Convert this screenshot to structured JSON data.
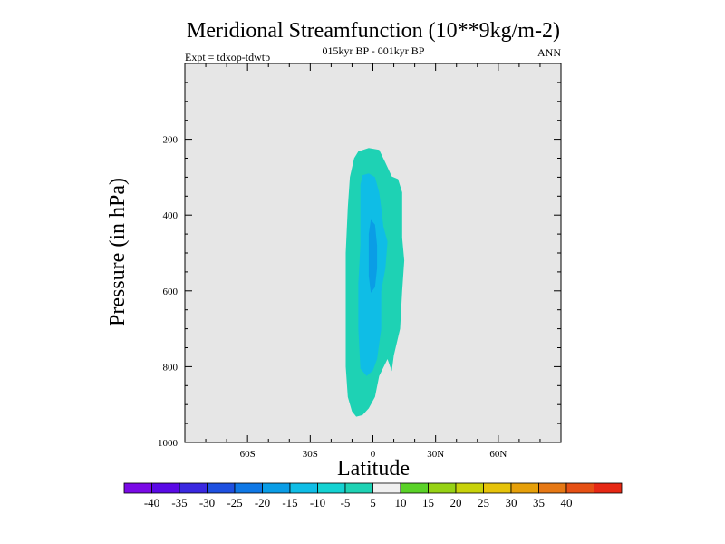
{
  "chart_data": {
    "type": "contour",
    "title": "Meridional Streamfunction (10**9kg/m-2)",
    "left_subtitle": "Expt = tdxop-tdwtp",
    "center_subtitle": "015kyr BP - 001kyr BP",
    "right_subtitle": "ANN",
    "xlabel": "Latitude",
    "ylabel": "Pressure (in hPa)",
    "xlim": [
      -90,
      90
    ],
    "ylim": [
      1000,
      0
    ],
    "x_ticks": [
      -60,
      -30,
      0,
      30,
      60
    ],
    "x_tick_labels": [
      "60S",
      "30S",
      "0",
      "30N",
      "60N"
    ],
    "y_ticks": [
      200,
      400,
      600,
      800,
      1000
    ],
    "y_tick_labels": [
      "200",
      "400",
      "600",
      "800",
      "1000"
    ],
    "background_color": "#e6e6e6",
    "contours": [
      {
        "level": -10,
        "color": "#1ed2b4",
        "outline": [
          [
            -7,
            232
          ],
          [
            -2,
            223
          ],
          [
            3,
            228
          ],
          [
            6,
            262
          ],
          [
            9,
            298
          ],
          [
            12,
            305
          ],
          [
            14,
            340
          ],
          [
            14,
            460
          ],
          [
            15,
            520
          ],
          [
            14,
            600
          ],
          [
            13,
            700
          ],
          [
            10,
            770
          ],
          [
            9,
            812
          ],
          [
            7,
            780
          ],
          [
            3,
            825
          ],
          [
            1,
            880
          ],
          [
            -2,
            910
          ],
          [
            -5,
            928
          ],
          [
            -8,
            932
          ],
          [
            -10,
            918
          ],
          [
            -12,
            880
          ],
          [
            -13,
            800
          ],
          [
            -13,
            700
          ],
          [
            -13,
            600
          ],
          [
            -13,
            500
          ],
          [
            -12,
            380
          ],
          [
            -11,
            300
          ],
          [
            -9,
            250
          ]
        ]
      },
      {
        "level": -15,
        "color": "#0fbde6",
        "outline": [
          [
            -5,
            295
          ],
          [
            -2,
            290
          ],
          [
            1,
            300
          ],
          [
            3,
            340
          ],
          [
            4,
            380
          ],
          [
            5,
            430
          ],
          [
            7,
            470
          ],
          [
            6,
            540
          ],
          [
            4,
            600
          ],
          [
            4,
            700
          ],
          [
            2,
            780
          ],
          [
            0,
            810
          ],
          [
            -3,
            825
          ],
          [
            -6,
            805
          ],
          [
            -7,
            700
          ],
          [
            -7,
            580
          ],
          [
            -6,
            480
          ],
          [
            -6,
            400
          ],
          [
            -6,
            320
          ]
        ]
      },
      {
        "level": -20,
        "color": "#0a9de6",
        "outline": [
          [
            -1,
            412
          ],
          [
            1,
            425
          ],
          [
            2,
            480
          ],
          [
            2,
            540
          ],
          [
            1,
            590
          ],
          [
            -1,
            605
          ],
          [
            -2,
            560
          ],
          [
            -2,
            500
          ],
          [
            -2,
            450
          ]
        ]
      }
    ],
    "colorbar": {
      "labels": [
        "-40",
        "-35",
        "-30",
        "-25",
        "-20",
        "-15",
        "-10",
        "-5",
        "5",
        "10",
        "15",
        "20",
        "25",
        "30",
        "35",
        "40"
      ],
      "colors": [
        "#7a0ae6",
        "#5a0ae6",
        "#3a28e0",
        "#1e50e0",
        "#0f78e6",
        "#0a9de6",
        "#0fbde6",
        "#14d2d2",
        "#1ed2b4",
        "#f0f0f0",
        "#5ad228",
        "#96d214",
        "#c8d20a",
        "#e6c30a",
        "#e6a00a",
        "#e67814",
        "#e65014",
        "#e62814"
      ]
    }
  }
}
